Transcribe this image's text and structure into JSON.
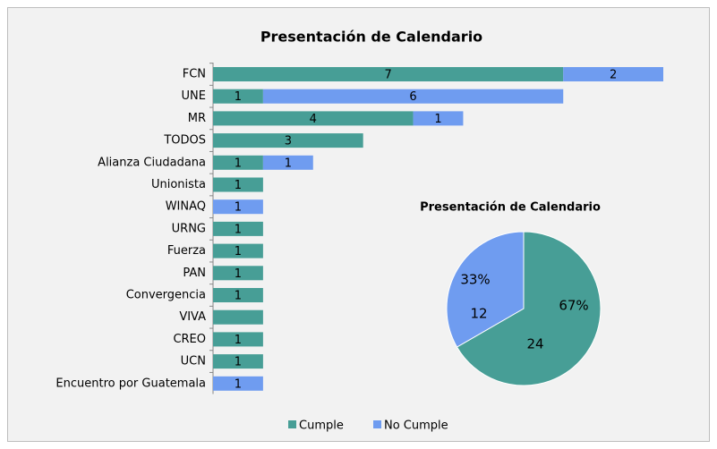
{
  "chart_data": [
    {
      "type": "bar",
      "orientation": "horizontal",
      "stacked": true,
      "title": "Presentación de Calendario",
      "categories": [
        "FCN",
        "UNE",
        "MR",
        "TODOS",
        "Alianza Ciudadana",
        "Unionista",
        "WINAQ",
        "URNG",
        "Fuerza",
        "PAN",
        "Convergencia",
        "VIVA",
        "CREO",
        "UCN",
        "Encuentro por Guatemala"
      ],
      "series": [
        {
          "name": "Cumple",
          "color": "#479e96",
          "values": [
            7,
            1,
            4,
            3,
            1,
            1,
            null,
            1,
            1,
            1,
            1,
            1,
            1,
            1,
            null
          ],
          "value_labels": [
            "7",
            "1",
            "4",
            "3",
            "1",
            "1",
            null,
            "1",
            "1",
            "1",
            "1",
            null,
            "1",
            "1",
            null
          ]
        },
        {
          "name": "No Cumple",
          "color": "#6f9cf0",
          "values": [
            2,
            6,
            1,
            null,
            1,
            null,
            1,
            null,
            null,
            null,
            null,
            null,
            null,
            null,
            1
          ]
        }
      ],
      "xlim": [
        0,
        9
      ],
      "legend": "bottom"
    },
    {
      "type": "pie",
      "title": "Presentación de Calendario",
      "values": [
        24,
        12
      ],
      "colors": [
        "#479e96",
        "#6f9cf0"
      ],
      "percent_labels": [
        "67%",
        "33%"
      ]
    }
  ]
}
